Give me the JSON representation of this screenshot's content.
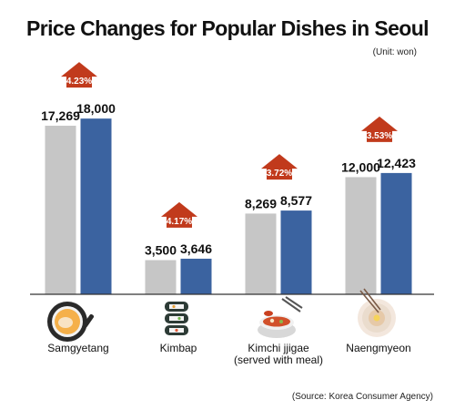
{
  "title": "Price Changes for Popular Dishes in Seoul",
  "unit": "(Unit: won)",
  "source": "(Source: Korea Consumer Agency)",
  "colors": {
    "previous_bar": "#c6c6c6",
    "current_bar": "#3b63a0",
    "increase_arrow": "#c13a1c",
    "baseline": "#333333"
  },
  "chart_data": {
    "type": "bar",
    "categories": [
      "Samgyetang",
      "Kimbap",
      "Kimchi jjigae\n(served with meal)",
      "Naengmyeon"
    ],
    "series": [
      {
        "values": [
          17269,
          3500,
          8269,
          12000
        ],
        "labels": [
          "17,269",
          "3,500",
          "8,269",
          "12,000"
        ]
      },
      {
        "values": [
          18000,
          3646,
          8577,
          12423
        ],
        "labels": [
          "18,000",
          "3,646",
          "8,577",
          "12,423"
        ]
      }
    ],
    "changes": [
      "4.23%",
      "4.17%",
      "3.72%",
      "3.53%"
    ],
    "ylim": [
      0,
      21000
    ],
    "legend": "none",
    "grid": false
  },
  "icons": [
    "samgyetang-bowl-icon",
    "kimbap-rolls-icon",
    "kimchi-jjigae-pot-icon",
    "naengmyeon-bowl-icon"
  ]
}
